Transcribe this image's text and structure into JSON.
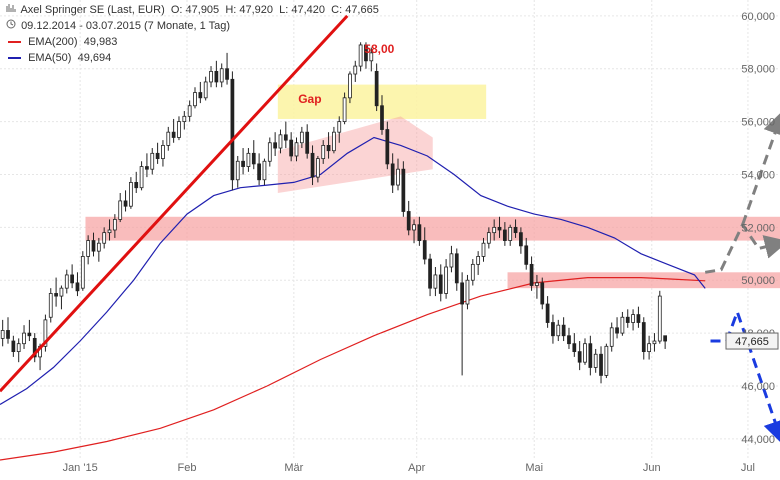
{
  "header": {
    "title": "Axel Springer SE (Last, EUR)",
    "open": "O: 47,905",
    "high": "H: 47,920",
    "low": "L: 47,420",
    "close": "C: 47,665",
    "period": "09.12.2014 - 03.07.2015 (7 Monate, 1 Tag)",
    "ema200_label": "EMA(200)",
    "ema200_value": "49,983",
    "ema50_label": "EMA(50)",
    "ema50_value": "49,694"
  },
  "colors": {
    "ema200": "#e02020",
    "ema50": "#2020b0",
    "trendline": "#e01010",
    "zone": "#f7a0a0",
    "gap": "#fbf3a0",
    "up_arrow": "#808080",
    "down_arrow": "#1a3be0"
  },
  "chart_data": {
    "type": "candlestick",
    "x_tick_labels": [
      "Jan '15",
      "Feb",
      "Mär",
      "Apr",
      "Mai",
      "Jun",
      "Jul"
    ],
    "y_tick_labels": [
      "44,000",
      "46,000",
      "48,000",
      "50,000",
      "52,000",
      "54,000",
      "56,000",
      "58,000",
      "60,000"
    ],
    "ylim": [
      43.2,
      60.6
    ],
    "xlim": [
      0,
      146
    ],
    "last_value_label": "47,665",
    "annotations": {
      "trend_target": "58,00",
      "gap": "Gap"
    },
    "ema200": [
      [
        0,
        43.2
      ],
      [
        10,
        43.5
      ],
      [
        20,
        43.9
      ],
      [
        30,
        44.4
      ],
      [
        40,
        45.1
      ],
      [
        50,
        46.0
      ],
      [
        60,
        47.0
      ],
      [
        70,
        47.9
      ],
      [
        80,
        48.7
      ],
      [
        90,
        49.4
      ],
      [
        100,
        49.9
      ],
      [
        110,
        50.1
      ],
      [
        120,
        50.1
      ],
      [
        125,
        50.05
      ],
      [
        132,
        49.98
      ]
    ],
    "ema50": [
      [
        0,
        45.3
      ],
      [
        5,
        45.9
      ],
      [
        10,
        46.7
      ],
      [
        15,
        47.7
      ],
      [
        20,
        48.8
      ],
      [
        25,
        50.0
      ],
      [
        30,
        51.4
      ],
      [
        35,
        52.5
      ],
      [
        40,
        53.2
      ],
      [
        45,
        53.5
      ],
      [
        50,
        53.6
      ],
      [
        55,
        53.7
      ],
      [
        60,
        54.0
      ],
      [
        65,
        54.8
      ],
      [
        70,
        55.4
      ],
      [
        75,
        55.1
      ],
      [
        80,
        54.7
      ],
      [
        85,
        54.0
      ],
      [
        90,
        53.2
      ],
      [
        95,
        52.8
      ],
      [
        100,
        52.5
      ],
      [
        105,
        52.3
      ],
      [
        110,
        52.0
      ],
      [
        115,
        51.6
      ],
      [
        120,
        51.0
      ],
      [
        125,
        50.6
      ],
      [
        130,
        50.2
      ],
      [
        132,
        49.69
      ]
    ],
    "zones": [
      {
        "x": [
          16,
          146
        ],
        "y": [
          51.5,
          52.4
        ]
      },
      {
        "x": [
          95,
          146
        ],
        "y": [
          49.7,
          50.3
        ]
      }
    ],
    "gap_box": {
      "x": [
        52,
        91
      ],
      "y": [
        56.1,
        57.4
      ]
    },
    "channel": [
      [
        52,
        53.3
      ],
      [
        52,
        54.9
      ],
      [
        75,
        56.2
      ],
      [
        81,
        55.4
      ],
      [
        81,
        54.2
      ],
      [
        52,
        53.3
      ]
    ],
    "trendline": [
      [
        0,
        45.8
      ],
      [
        65,
        60.0
      ]
    ],
    "forecast_up": [
      [
        132,
        50.3
      ],
      [
        135,
        50.4
      ],
      [
        139,
        52.1
      ],
      [
        142,
        51.2
      ],
      [
        146,
        51.4
      ]
    ],
    "forecast_up_arrow": [
      [
        139,
        52.1
      ],
      [
        146,
        56.1
      ]
    ],
    "forecast_down": [
      [
        133,
        47.7
      ],
      [
        136,
        47.7
      ],
      [
        138,
        48.8
      ],
      [
        146,
        44.1
      ]
    ],
    "candles": [
      [
        47.8,
        48.5,
        47.5,
        48.1
      ],
      [
        48.1,
        48.6,
        47.6,
        47.8
      ],
      [
        47.7,
        47.9,
        47.1,
        47.3
      ],
      [
        47.3,
        47.8,
        46.9,
        47.6
      ],
      [
        47.6,
        48.3,
        47.4,
        48.0
      ],
      [
        48.0,
        48.5,
        47.7,
        47.9
      ],
      [
        47.8,
        48.0,
        46.9,
        47.1
      ],
      [
        47.1,
        47.6,
        46.6,
        47.5
      ],
      [
        47.5,
        48.7,
        47.3,
        48.5
      ],
      [
        48.6,
        49.7,
        48.4,
        49.5
      ],
      [
        49.5,
        50.1,
        49.0,
        49.4
      ],
      [
        49.4,
        49.8,
        48.9,
        49.7
      ],
      [
        49.7,
        50.4,
        49.5,
        50.2
      ],
      [
        50.2,
        50.6,
        49.7,
        49.9
      ],
      [
        49.9,
        50.3,
        49.4,
        49.6
      ],
      [
        49.7,
        51.1,
        49.6,
        50.9
      ],
      [
        50.9,
        51.7,
        50.6,
        51.5
      ],
      [
        51.5,
        51.8,
        50.9,
        51.1
      ],
      [
        51.1,
        51.6,
        50.7,
        51.4
      ],
      [
        51.4,
        52.0,
        51.2,
        51.8
      ],
      [
        51.8,
        52.3,
        51.5,
        51.9
      ],
      [
        51.9,
        52.5,
        51.6,
        52.3
      ],
      [
        52.3,
        53.3,
        52.2,
        53.0
      ],
      [
        53.0,
        53.4,
        52.6,
        52.8
      ],
      [
        52.8,
        53.9,
        52.7,
        53.7
      ],
      [
        53.7,
        54.1,
        53.3,
        53.5
      ],
      [
        53.5,
        54.5,
        53.4,
        54.3
      ],
      [
        54.3,
        54.8,
        53.9,
        54.2
      ],
      [
        54.2,
        55.0,
        54.0,
        54.8
      ],
      [
        54.8,
        55.2,
        54.4,
        54.6
      ],
      [
        54.6,
        55.3,
        54.3,
        55.1
      ],
      [
        55.1,
        55.8,
        54.9,
        55.6
      ],
      [
        55.6,
        56.1,
        55.2,
        55.4
      ],
      [
        55.4,
        56.2,
        55.3,
        56.0
      ],
      [
        56.0,
        56.4,
        55.7,
        56.2
      ],
      [
        56.2,
        56.8,
        56.0,
        56.6
      ],
      [
        56.6,
        57.3,
        56.5,
        57.1
      ],
      [
        57.1,
        57.5,
        56.7,
        56.9
      ],
      [
        56.9,
        57.7,
        56.8,
        57.5
      ],
      [
        57.5,
        58.1,
        57.3,
        57.9
      ],
      [
        57.9,
        58.3,
        57.3,
        57.5
      ],
      [
        57.5,
        58.2,
        57.3,
        58.0
      ],
      [
        58.0,
        58.6,
        57.4,
        57.6
      ],
      [
        57.6,
        57.9,
        53.4,
        53.8
      ],
      [
        53.8,
        54.7,
        53.5,
        54.5
      ],
      [
        54.5,
        55.0,
        54.0,
        54.3
      ],
      [
        54.3,
        55.0,
        54.1,
        54.8
      ],
      [
        54.8,
        55.3,
        54.2,
        54.4
      ],
      [
        54.4,
        54.8,
        53.6,
        53.8
      ],
      [
        53.8,
        54.6,
        53.6,
        54.5
      ],
      [
        54.5,
        55.4,
        54.3,
        55.2
      ],
      [
        55.2,
        55.6,
        54.7,
        55.0
      ],
      [
        55.0,
        55.7,
        54.8,
        55.5
      ],
      [
        55.5,
        56.0,
        55.0,
        55.3
      ],
      [
        55.3,
        55.6,
        54.5,
        54.7
      ],
      [
        54.7,
        55.4,
        54.5,
        55.2
      ],
      [
        55.2,
        55.8,
        55.0,
        55.6
      ],
      [
        55.6,
        55.9,
        54.6,
        54.8
      ],
      [
        54.8,
        55.1,
        53.6,
        53.9
      ],
      [
        53.9,
        54.7,
        53.7,
        54.6
      ],
      [
        54.6,
        55.3,
        54.4,
        55.1
      ],
      [
        55.1,
        55.6,
        54.6,
        54.9
      ],
      [
        54.9,
        55.8,
        54.8,
        55.6
      ],
      [
        55.6,
        56.2,
        55.2,
        56.0
      ],
      [
        56.0,
        57.1,
        55.9,
        56.9
      ],
      [
        56.9,
        57.9,
        56.7,
        57.8
      ],
      [
        57.8,
        58.3,
        57.5,
        58.1
      ],
      [
        58.1,
        59.0,
        57.9,
        58.9
      ],
      [
        58.9,
        59.0,
        58.0,
        58.3
      ],
      [
        58.3,
        58.8,
        57.9,
        58.6
      ],
      [
        57.9,
        58.2,
        56.4,
        56.6
      ],
      [
        56.6,
        57.0,
        55.5,
        55.7
      ],
      [
        55.7,
        56.0,
        54.2,
        54.4
      ],
      [
        54.4,
        54.8,
        53.3,
        53.6
      ],
      [
        53.6,
        54.6,
        53.4,
        54.2
      ],
      [
        54.2,
        54.5,
        52.4,
        52.6
      ],
      [
        52.6,
        53.0,
        51.7,
        51.9
      ],
      [
        51.9,
        52.3,
        51.4,
        52.1
      ],
      [
        52.1,
        52.4,
        51.3,
        51.5
      ],
      [
        51.5,
        52.0,
        50.6,
        50.8
      ],
      [
        50.8,
        51.0,
        49.4,
        49.7
      ],
      [
        49.7,
        50.5,
        49.4,
        50.2
      ],
      [
        50.2,
        50.6,
        49.2,
        49.5
      ],
      [
        49.5,
        50.8,
        49.3,
        50.5
      ],
      [
        50.5,
        51.3,
        50.3,
        51.0
      ],
      [
        51.0,
        51.2,
        49.6,
        49.9
      ],
      [
        49.9,
        50.3,
        46.4,
        49.1
      ],
      [
        49.1,
        50.2,
        48.9,
        50.0
      ],
      [
        50.0,
        50.8,
        49.8,
        50.6
      ],
      [
        50.6,
        51.1,
        50.2,
        50.9
      ],
      [
        50.9,
        51.6,
        50.7,
        51.4
      ],
      [
        51.4,
        52.0,
        51.2,
        51.8
      ],
      [
        51.8,
        52.3,
        51.5,
        52.0
      ],
      [
        52.0,
        52.4,
        51.6,
        51.9
      ],
      [
        51.9,
        52.2,
        51.3,
        51.5
      ],
      [
        51.5,
        52.1,
        51.3,
        52.0
      ],
      [
        52.0,
        52.3,
        51.6,
        51.8
      ],
      [
        51.8,
        52.0,
        51.0,
        51.3
      ],
      [
        51.3,
        51.6,
        50.4,
        50.6
      ],
      [
        50.6,
        50.9,
        49.6,
        49.8
      ],
      [
        49.8,
        50.2,
        49.3,
        49.9
      ],
      [
        49.9,
        50.1,
        48.9,
        49.1
      ],
      [
        49.1,
        49.4,
        48.2,
        48.4
      ],
      [
        48.4,
        48.7,
        47.6,
        47.9
      ],
      [
        47.9,
        48.5,
        47.7,
        48.3
      ],
      [
        48.3,
        48.6,
        47.7,
        47.9
      ],
      [
        47.9,
        48.2,
        47.4,
        47.6
      ],
      [
        47.6,
        48.0,
        47.1,
        47.3
      ],
      [
        47.3,
        47.7,
        46.6,
        46.9
      ],
      [
        46.9,
        47.8,
        46.8,
        47.6
      ],
      [
        47.6,
        47.9,
        46.4,
        46.7
      ],
      [
        46.7,
        47.4,
        46.5,
        47.2
      ],
      [
        47.2,
        47.5,
        46.1,
        46.4
      ],
      [
        46.4,
        47.6,
        46.3,
        47.5
      ],
      [
        47.5,
        48.4,
        47.3,
        48.2
      ],
      [
        48.2,
        48.6,
        47.8,
        48.0
      ],
      [
        48.0,
        48.8,
        47.9,
        48.6
      ],
      [
        48.6,
        48.9,
        48.2,
        48.4
      ],
      [
        48.4,
        48.9,
        48.1,
        48.7
      ],
      [
        48.7,
        49.0,
        48.2,
        48.4
      ],
      [
        48.4,
        48.6,
        47.0,
        47.3
      ],
      [
        47.3,
        47.9,
        47.0,
        47.6
      ],
      [
        47.6,
        48.0,
        47.3,
        47.7
      ],
      [
        47.7,
        49.6,
        47.6,
        49.4
      ],
      [
        47.9,
        47.9,
        47.4,
        47.7
      ]
    ]
  }
}
